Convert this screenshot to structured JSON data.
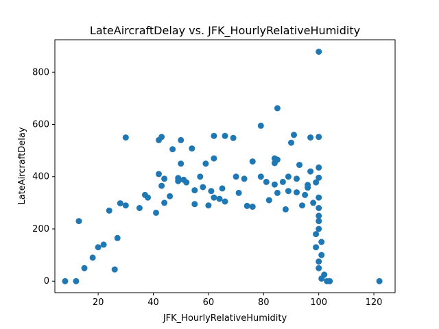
{
  "chart_data": {
    "type": "scatter",
    "title": "LateAircraftDelay vs. JFK_HourlyRelativeHumidity",
    "xlabel": "JFK_HourlyRelativeHumidity",
    "ylabel": "LateAircraftDelay",
    "xlim": [
      4.3,
      127.7
    ],
    "ylim": [
      -44,
      924
    ],
    "xticks": [
      20,
      40,
      60,
      80,
      100,
      120
    ],
    "yticks": [
      0,
      200,
      400,
      600,
      800
    ],
    "grid": false,
    "marker_color": "#1f77b4",
    "points": [
      [
        100,
        878
      ],
      [
        85,
        662
      ],
      [
        79,
        595
      ],
      [
        91,
        560
      ],
      [
        62,
        556
      ],
      [
        66,
        556
      ],
      [
        43,
        552
      ],
      [
        30,
        550
      ],
      [
        100,
        552
      ],
      [
        97,
        550
      ],
      [
        69,
        548
      ],
      [
        50,
        540
      ],
      [
        42,
        540
      ],
      [
        90,
        530
      ],
      [
        54,
        508
      ],
      [
        47,
        505
      ],
      [
        62,
        470
      ],
      [
        84,
        470
      ],
      [
        85,
        465
      ],
      [
        76,
        458
      ],
      [
        84,
        452
      ],
      [
        50,
        450
      ],
      [
        59,
        450
      ],
      [
        93,
        445
      ],
      [
        100,
        435
      ],
      [
        97,
        420
      ],
      [
        42,
        410
      ],
      [
        57,
        400
      ],
      [
        79,
        400
      ],
      [
        70,
        400
      ],
      [
        89,
        400
      ],
      [
        100,
        396
      ],
      [
        49,
        395
      ],
      [
        73,
        392
      ],
      [
        44,
        392
      ],
      [
        92,
        392
      ],
      [
        51,
        388
      ],
      [
        49,
        383
      ],
      [
        81,
        380
      ],
      [
        87,
        380
      ],
      [
        52,
        378
      ],
      [
        99,
        378
      ],
      [
        84,
        370
      ],
      [
        96,
        368
      ],
      [
        43,
        365
      ],
      [
        58,
        360
      ],
      [
        96,
        358
      ],
      [
        65,
        355
      ],
      [
        55,
        348
      ],
      [
        89,
        345
      ],
      [
        61,
        345
      ],
      [
        92,
        340
      ],
      [
        71,
        338
      ],
      [
        85,
        338
      ],
      [
        37,
        330
      ],
      [
        95,
        330
      ],
      [
        46,
        325
      ],
      [
        38,
        320
      ],
      [
        62,
        320
      ],
      [
        100,
        320
      ],
      [
        64,
        315
      ],
      [
        82,
        310
      ],
      [
        28,
        298
      ],
      [
        30,
        290
      ],
      [
        44,
        300
      ],
      [
        55,
        295
      ],
      [
        60,
        290
      ],
      [
        74,
        288
      ],
      [
        24,
        270
      ],
      [
        35,
        280
      ],
      [
        41,
        262
      ],
      [
        66,
        305
      ],
      [
        76,
        285
      ],
      [
        88,
        275
      ],
      [
        94,
        290
      ],
      [
        98,
        300
      ],
      [
        13,
        230
      ],
      [
        27,
        165
      ],
      [
        22,
        140
      ],
      [
        20,
        130
      ],
      [
        18,
        90
      ],
      [
        15,
        50
      ],
      [
        26,
        45
      ],
      [
        12,
        0
      ],
      [
        8,
        0
      ],
      [
        103,
        0
      ],
      [
        122,
        0
      ],
      [
        100,
        280
      ],
      [
        100,
        250
      ],
      [
        100,
        230
      ],
      [
        100,
        200
      ],
      [
        99,
        180
      ],
      [
        101,
        150
      ],
      [
        99,
        130
      ],
      [
        101,
        100
      ],
      [
        100,
        75
      ],
      [
        100,
        50
      ],
      [
        102,
        25
      ],
      [
        101,
        10
      ],
      [
        104,
        0
      ]
    ]
  }
}
